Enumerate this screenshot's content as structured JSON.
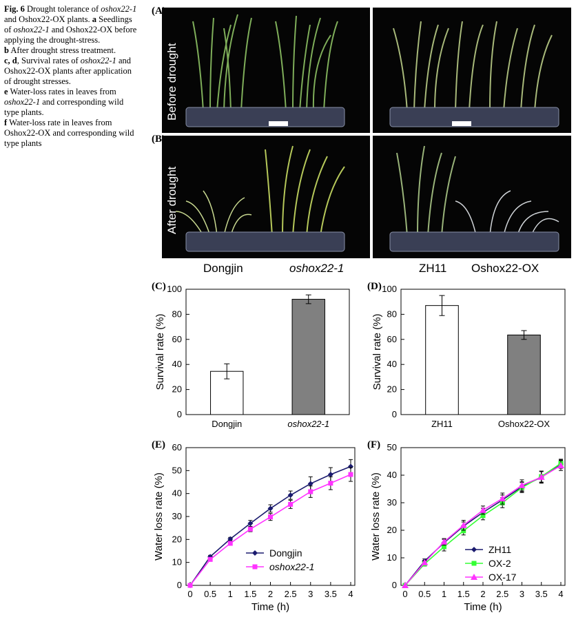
{
  "caption": {
    "fig": "Fig. 6",
    "title": "Drought tolerance of",
    "g1": "oshox22-1",
    "t2": "and Oshox22-OX plants.",
    "a": "a",
    "ta": "Seedlings of",
    "ta2": "and Oshox22-OX before applying the drought-stress.",
    "b": "b",
    "tb": "After drought stress treatment.",
    "cd": "c, d",
    "tcd": ", Survival rates of",
    "tcd2": "and Oshox22-OX plants after application of drought stresses.",
    "e": "e",
    "te": "Water-loss rates in leaves from",
    "te2": "and corresponding wild type plants.",
    "f": "f",
    "tf": "Water-loss rate in leaves from Oshox22-OX and corresponding wild type plants"
  },
  "panels": {
    "A": "(A)",
    "B": "(B)",
    "C": "(C)",
    "D": "(D)",
    "E": "(E)",
    "F": "(F)",
    "before": "Before drought",
    "after": "After drought",
    "dongjin": "Dongjin",
    "oshox": "oshox22-1",
    "zh11": "ZH11",
    "ox": "Oshox22-OX"
  },
  "chart_data": [
    {
      "id": "C",
      "type": "bar",
      "categories": [
        "Dongjin",
        "oshox22-1"
      ],
      "values": [
        34.5,
        92
      ],
      "errors": [
        6,
        3.5
      ],
      "colors": [
        "#ffffff",
        "#808080"
      ],
      "ylabel": "Survival rate (%)",
      "ylim": [
        0,
        100
      ],
      "yticks": [
        0,
        20,
        40,
        60,
        80,
        100
      ]
    },
    {
      "id": "D",
      "type": "bar",
      "categories": [
        "ZH11",
        "Oshox22-OX"
      ],
      "values": [
        87,
        63.5
      ],
      "errors": [
        8,
        3.5
      ],
      "colors": [
        "#ffffff",
        "#808080"
      ],
      "ylabel": "Survival rate (%)",
      "ylim": [
        0,
        100
      ],
      "yticks": [
        0,
        20,
        40,
        60,
        80,
        100
      ]
    },
    {
      "id": "E",
      "type": "line",
      "x": [
        0,
        0.5,
        1,
        1.5,
        2,
        2.5,
        3,
        3.5,
        4
      ],
      "xlabel": "Time (h)",
      "ylabel": "Water loss rate (%)",
      "ylim": [
        0,
        60
      ],
      "yticks": [
        0,
        10,
        20,
        30,
        40,
        50,
        60
      ],
      "series": [
        {
          "name": "Dongjin",
          "color": "#1a1a6e",
          "marker": "diamond",
          "values": [
            0,
            12.5,
            20.2,
            27,
            33.5,
            39.3,
            44.3,
            48.3,
            51.8
          ],
          "errors": [
            0,
            0.6,
            0.7,
            1.3,
            1.6,
            1.8,
            3,
            3,
            3
          ]
        },
        {
          "name": "oshox22-1",
          "color": "#ff33ff",
          "marker": "square",
          "values": [
            0,
            11.3,
            18.3,
            24.5,
            29.8,
            35.3,
            40.8,
            44.5,
            48.3
          ],
          "errors": [
            0,
            0.6,
            0.9,
            1.1,
            1.5,
            1.8,
            2.5,
            2.8,
            3
          ]
        }
      ]
    },
    {
      "id": "F",
      "type": "line",
      "x": [
        0,
        0.5,
        1,
        1.5,
        2,
        2.5,
        3,
        3.5,
        4
      ],
      "xlabel": "Time (h)",
      "ylabel": "Water loss rate (%)",
      "ylim": [
        0,
        50
      ],
      "yticks": [
        0,
        10,
        20,
        30,
        40,
        50
      ],
      "series": [
        {
          "name": "ZH11",
          "color": "#1a1a6e",
          "marker": "diamond",
          "values": [
            0,
            8.8,
            15.5,
            21.5,
            26.5,
            31,
            35.8,
            39.3,
            44
          ],
          "errors": [
            0,
            0.8,
            1.2,
            1.5,
            1.5,
            1.8,
            1.8,
            2,
            1.5
          ]
        },
        {
          "name": "OX-2",
          "color": "#33ff33",
          "marker": "square",
          "values": [
            0,
            7.8,
            14,
            19.8,
            25.3,
            30,
            35.5,
            39.5,
            44.3
          ],
          "errors": [
            0,
            0.8,
            1.5,
            1.5,
            1.5,
            1.8,
            1.8,
            2,
            1.5
          ]
        },
        {
          "name": "OX-17",
          "color": "#ff33ff",
          "marker": "triangle",
          "values": [
            0,
            8.3,
            15.8,
            21.8,
            27.3,
            31.5,
            36.3,
            39.3,
            43.5
          ],
          "errors": [
            0,
            0.8,
            1.2,
            1.8,
            1.5,
            2,
            2,
            2.2,
            1.8
          ]
        }
      ]
    }
  ]
}
